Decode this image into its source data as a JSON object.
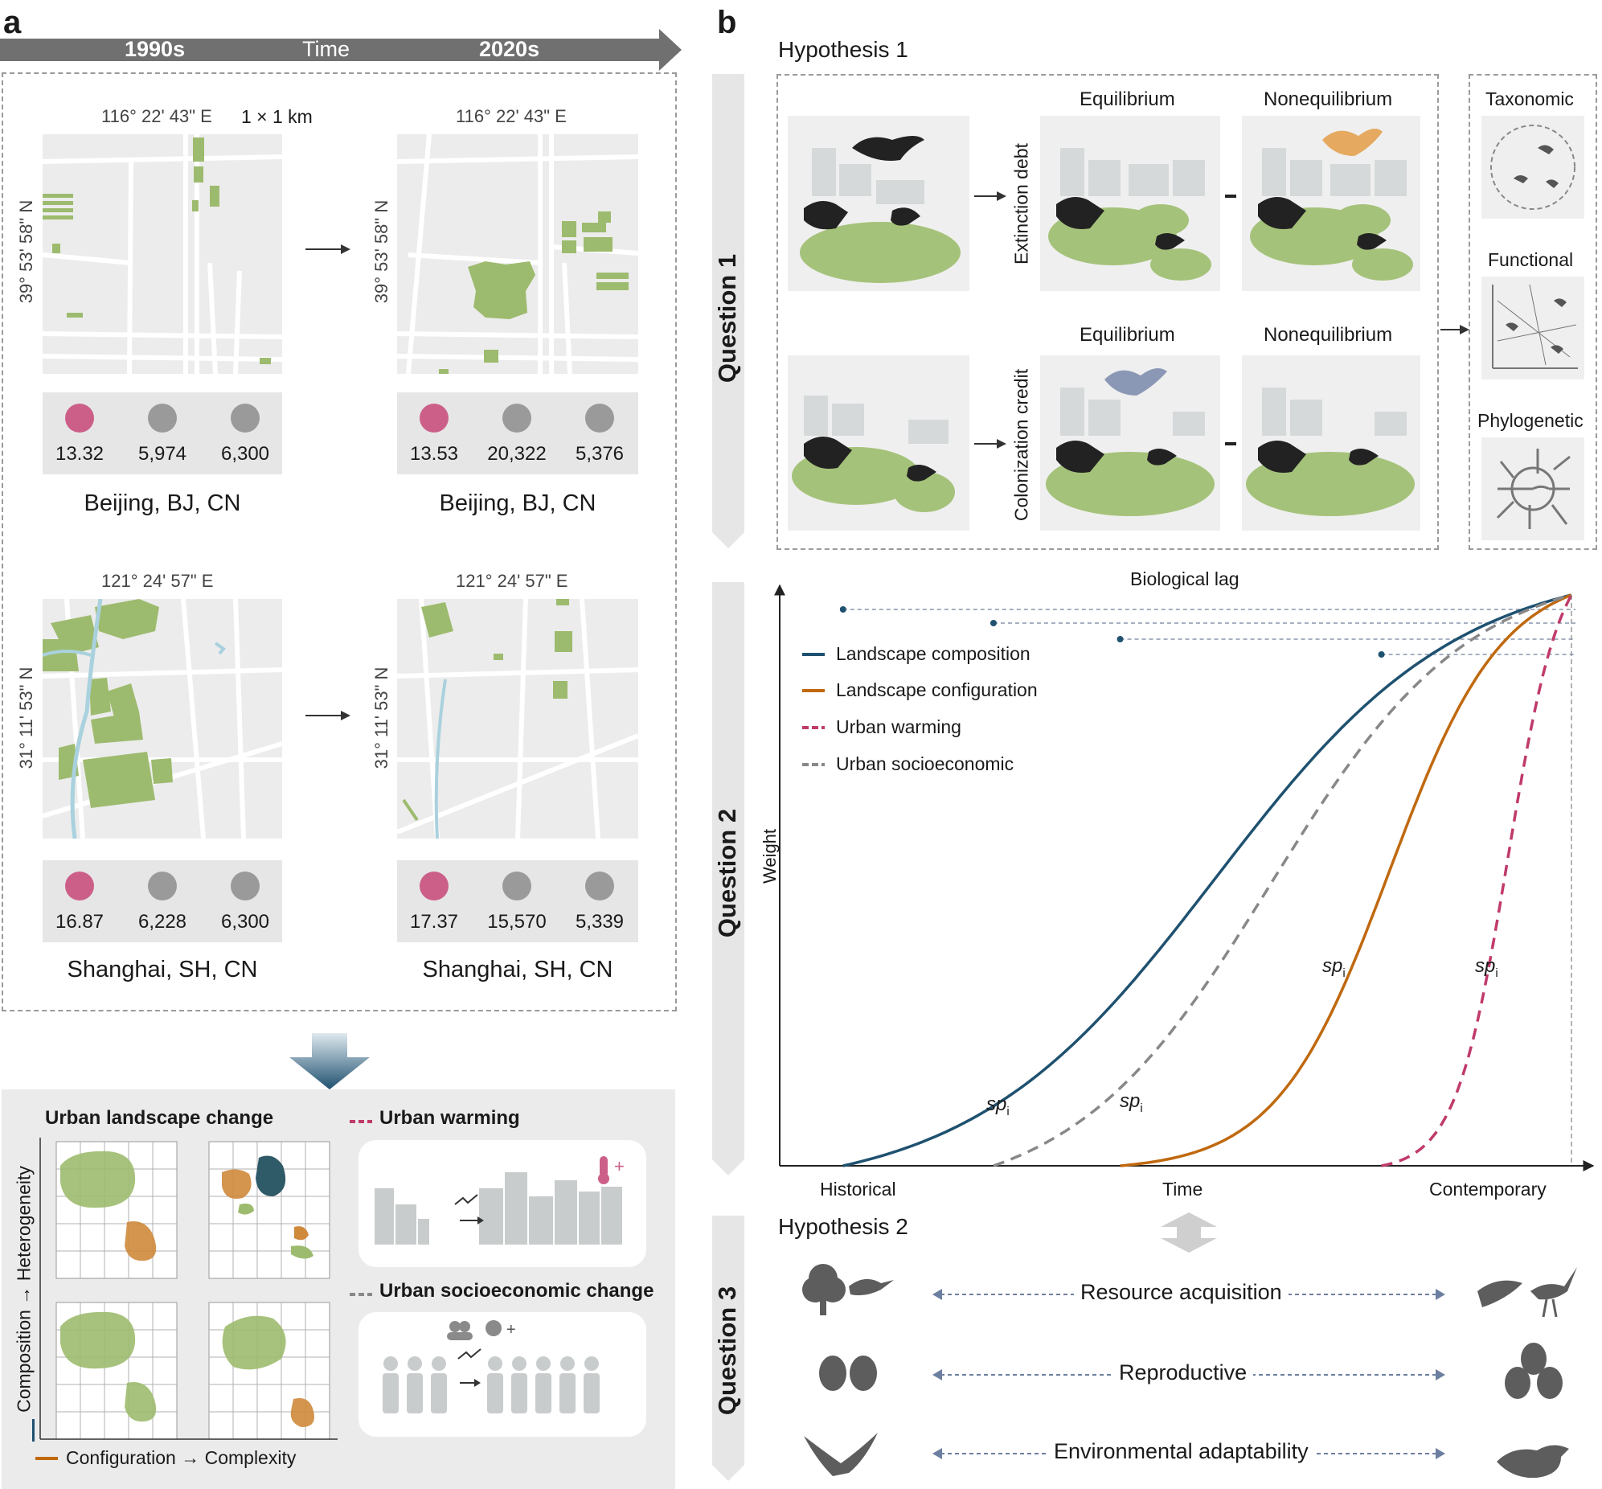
{
  "panel_a": {
    "letter": "a",
    "timeline": {
      "start": "1990s",
      "middle": "Time",
      "end": "2020s"
    },
    "scale": "1 × 1 km",
    "beijing": {
      "lon": "116° 22' 43\" E",
      "lat": "39° 53' 58\" N",
      "city": "Beijing, BJ, CN",
      "stats_1990": [
        "13.32",
        "5,974",
        "6,300"
      ],
      "stats_2020": [
        "13.53",
        "20,322",
        "5,376"
      ]
    },
    "shanghai": {
      "lon": "121° 24' 57\" E",
      "lat": "31° 11' 53\" N",
      "city": "Shanghai, SH, CN",
      "stats_1990": [
        "16.87",
        "6,228",
        "6,300"
      ],
      "stats_2020": [
        "17.37",
        "15,570",
        "5,339"
      ]
    },
    "bottom": {
      "landscape_title": "Urban landscape change",
      "warming_title": "Urban warming",
      "socio_title": "Urban socioeconomic change",
      "y_axis": "Composition → Heterogeneity",
      "x_axis": "Configuration → Complexity"
    }
  },
  "panel_b": {
    "letter": "b",
    "hypothesis1": "Hypothesis 1",
    "hypothesis2": "Hypothesis 2",
    "questions": [
      "Question 1",
      "Question 2",
      "Question 3"
    ],
    "q1": {
      "equilibrium": "Equilibrium",
      "nonequilibrium": "Nonequilibrium",
      "extinction_debt": "Extinction debt",
      "colonization_credit": "Colonization credit",
      "diversity": [
        "Taxonomic",
        "Functional",
        "Phylogenetic"
      ]
    },
    "q2": {
      "lag_label": "Biological lag",
      "y_label": "Weight",
      "x_label": "Time",
      "x_start": "Historical",
      "x_end": "Contemporary",
      "sp_label": "sp",
      "sp_sub": "i"
    },
    "q3": {
      "traits": [
        "Resource acquisition",
        "Reproductive",
        "Environmental adaptability"
      ]
    }
  },
  "chart_data": {
    "type": "line",
    "xlabel": "Time",
    "ylabel": "Weight",
    "series": [
      {
        "name": "Landscape composition",
        "color": "#1f5170",
        "dashed": false,
        "start": 0.08,
        "mid": 0.55,
        "k": 6.5
      },
      {
        "name": "Landscape configuration",
        "color": "#c0690f",
        "dashed": false,
        "start": 0.43,
        "mid": 0.77,
        "k": 14
      },
      {
        "name": "Urban warming",
        "color": "#c03a6b",
        "dashed": true,
        "start": 0.76,
        "mid": 0.92,
        "k": 30
      },
      {
        "name": "Urban socioeconomic",
        "color": "#888888",
        "dashed": true,
        "start": 0.27,
        "mid": 0.62,
        "k": 8
      }
    ]
  }
}
